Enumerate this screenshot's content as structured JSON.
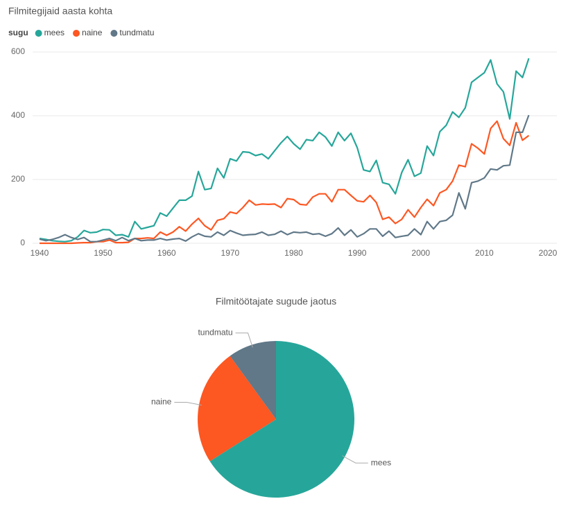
{
  "chart_data": [
    {
      "type": "line",
      "title": "Filmitegijaid aasta kohta",
      "legend_title": "sugu",
      "x": [
        1940,
        1941,
        1942,
        1943,
        1944,
        1945,
        1946,
        1947,
        1948,
        1949,
        1950,
        1951,
        1952,
        1953,
        1954,
        1955,
        1956,
        1957,
        1958,
        1959,
        1960,
        1961,
        1962,
        1963,
        1964,
        1965,
        1966,
        1967,
        1968,
        1969,
        1970,
        1971,
        1972,
        1973,
        1974,
        1975,
        1976,
        1977,
        1978,
        1979,
        1980,
        1981,
        1982,
        1983,
        1984,
        1985,
        1986,
        1987,
        1988,
        1989,
        1990,
        1991,
        1992,
        1993,
        1994,
        1995,
        1996,
        1997,
        1998,
        1999,
        2000,
        2001,
        2002,
        2003,
        2004,
        2005,
        2006,
        2007,
        2008,
        2009,
        2010,
        2011,
        2012,
        2013,
        2014,
        2015,
        2016,
        2017
      ],
      "series": [
        {
          "name": "mees",
          "color": "#26a69a",
          "values": [
            15,
            12,
            8,
            6,
            5,
            8,
            20,
            40,
            33,
            35,
            43,
            42,
            25,
            27,
            20,
            68,
            45,
            50,
            55,
            95,
            85,
            110,
            135,
            135,
            148,
            225,
            168,
            172,
            235,
            205,
            265,
            258,
            287,
            285,
            275,
            280,
            265,
            290,
            315,
            335,
            312,
            295,
            325,
            322,
            348,
            333,
            305,
            348,
            322,
            345,
            300,
            230,
            225,
            260,
            190,
            185,
            155,
            222,
            262,
            210,
            220,
            305,
            275,
            350,
            370,
            412,
            395,
            425,
            505,
            520,
            535,
            575,
            500,
            475,
            390,
            540,
            520,
            580
          ]
        },
        {
          "name": "naine",
          "color": "#fd5722",
          "values": [
            0,
            0,
            0,
            0,
            0,
            0,
            1,
            2,
            2,
            5,
            5,
            10,
            2,
            2,
            3,
            15,
            15,
            17,
            15,
            35,
            25,
            35,
            52,
            38,
            60,
            78,
            55,
            42,
            72,
            77,
            98,
            93,
            112,
            135,
            120,
            123,
            122,
            123,
            112,
            140,
            137,
            122,
            120,
            145,
            155,
            155,
            130,
            168,
            168,
            150,
            133,
            130,
            150,
            128,
            75,
            82,
            62,
            75,
            105,
            82,
            112,
            138,
            118,
            158,
            168,
            195,
            245,
            240,
            312,
            298,
            280,
            360,
            383,
            328,
            307,
            378,
            323,
            338
          ]
        },
        {
          "name": "tundmatu",
          "color": "#607888",
          "values": [
            13,
            8,
            12,
            18,
            27,
            18,
            12,
            18,
            5,
            5,
            10,
            15,
            8,
            18,
            8,
            15,
            8,
            10,
            10,
            15,
            10,
            13,
            15,
            7,
            20,
            30,
            22,
            20,
            35,
            25,
            40,
            32,
            25,
            27,
            28,
            35,
            25,
            28,
            38,
            27,
            35,
            33,
            35,
            28,
            30,
            22,
            30,
            48,
            25,
            42,
            20,
            30,
            45,
            45,
            22,
            38,
            18,
            22,
            25,
            45,
            27,
            68,
            45,
            68,
            72,
            88,
            158,
            108,
            190,
            195,
            205,
            233,
            230,
            243,
            245,
            348,
            348,
            402
          ]
        }
      ],
      "xlim": [
        1940,
        2020
      ],
      "xticks": [
        1940,
        1950,
        1960,
        1970,
        1980,
        1990,
        2000,
        2010,
        2020
      ],
      "ylim": [
        0,
        600
      ],
      "yticks": [
        0,
        200,
        400,
        600
      ],
      "grid": true
    },
    {
      "type": "pie",
      "title": "Filmitöötajate sugude jaotus",
      "categories": [
        "mees",
        "naine",
        "tundmatu"
      ],
      "values": [
        66,
        24,
        10
      ],
      "colors": [
        "#26a69a",
        "#fd5722",
        "#607888"
      ]
    }
  ]
}
